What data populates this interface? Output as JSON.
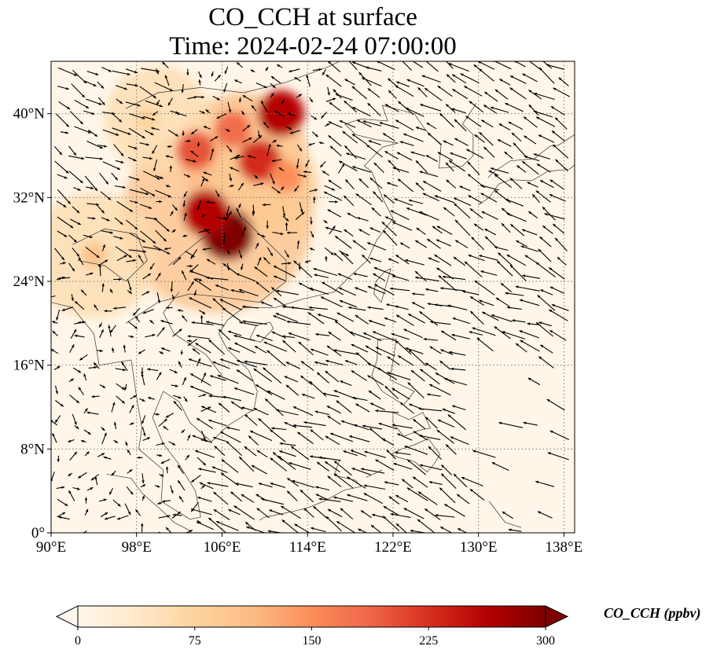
{
  "title": {
    "line1": "CO_CCH at surface",
    "line2": "Time: 2024-02-24 07:00:00"
  },
  "map": {
    "lon_range": [
      90,
      139
    ],
    "lat_range": [
      0,
      45
    ],
    "lon_ticks": [
      "90°E",
      "98°E",
      "106°E",
      "114°E",
      "122°E",
      "130°E",
      "138°E"
    ],
    "lon_tick_values": [
      90,
      98,
      106,
      114,
      122,
      130,
      138
    ],
    "lat_ticks": [
      "0°",
      "8°N",
      "16°N",
      "24°N",
      "32°N",
      "40°N"
    ],
    "lat_tick_values": [
      0,
      8,
      16,
      24,
      32,
      40
    ],
    "gridlines": "dotted",
    "background_color": "#fff6e9"
  },
  "colorbar": {
    "label": "CO_CCH (ppbv)",
    "ticks": [
      "0",
      "75",
      "150",
      "225",
      "300"
    ],
    "tick_values": [
      0,
      75,
      150,
      225,
      300
    ],
    "range": [
      0,
      300
    ],
    "extend": "both",
    "colormap": "OrRd",
    "colors": [
      "#fff7ec",
      "#fee8c8",
      "#fdd49e",
      "#fdbb84",
      "#fc8d59",
      "#ef6548",
      "#d7301f",
      "#b30000",
      "#7f0000"
    ]
  },
  "chart_data": {
    "type": "heatmap",
    "variable": "CO_CCH",
    "units": "ppbv",
    "level": "surface",
    "time": "2024-02-24 07:00:00",
    "high_value_regions": [
      {
        "lon": 106.5,
        "lat": 28.5,
        "value": 300
      },
      {
        "lon": 104.5,
        "lat": 30.5,
        "value": 260
      },
      {
        "lon": 111.5,
        "lat": 40.0,
        "value": 260
      },
      {
        "lon": 109.5,
        "lat": 35.5,
        "value": 230
      },
      {
        "lon": 103.5,
        "lat": 36.5,
        "value": 200
      },
      {
        "lon": 107.0,
        "lat": 38.5,
        "value": 180
      },
      {
        "lon": 112.0,
        "lat": 34.0,
        "value": 150
      },
      {
        "lon": 94.0,
        "lat": 26.5,
        "value": 100
      },
      {
        "lon": 99.0,
        "lat": 39.5,
        "value": 80
      },
      {
        "lon": 110.0,
        "lat": 25.5,
        "value": 90
      }
    ],
    "wind_vectors": "quiver field (wind arrows)"
  }
}
